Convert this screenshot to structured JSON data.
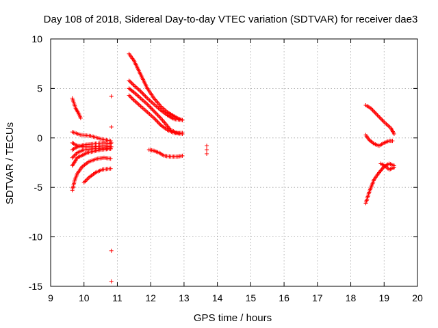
{
  "colors": {
    "series": "#ff0000",
    "grid": "#a0a0a0",
    "axis": "#000000",
    "background": "#ffffff"
  },
  "chart_data": {
    "type": "scatter",
    "title": "Day 108 of 2018, Sidereal Day-to-day VTEC variation (SDTVAR) for receiver dae3",
    "xlabel": "GPS time / hours",
    "ylabel": "SDTVAR / TECUs",
    "xlim": [
      9,
      20
    ],
    "ylim": [
      -15,
      10
    ],
    "xticks": [
      9,
      10,
      11,
      12,
      13,
      14,
      15,
      16,
      17,
      18,
      19,
      20
    ],
    "yticks": [
      -15,
      -10,
      -5,
      0,
      5,
      10
    ],
    "grid": true,
    "marker": "+",
    "series_tracks": [
      {
        "name": "track-a1",
        "points": [
          [
            9.65,
            4.0
          ],
          [
            9.75,
            3.0
          ],
          [
            9.85,
            2.4
          ],
          [
            9.9,
            2.0
          ]
        ]
      },
      {
        "name": "track-a2",
        "points": [
          [
            9.65,
            0.6
          ],
          [
            9.9,
            0.3
          ],
          [
            10.2,
            0.2
          ],
          [
            10.5,
            -0.1
          ],
          [
            10.8,
            -0.3
          ]
        ]
      },
      {
        "name": "track-a3",
        "points": [
          [
            9.65,
            -0.5
          ],
          [
            9.8,
            -0.8
          ],
          [
            10.0,
            -0.9
          ],
          [
            10.3,
            -0.9
          ],
          [
            10.6,
            -0.8
          ],
          [
            10.8,
            -0.9
          ]
        ]
      },
      {
        "name": "track-a4",
        "points": [
          [
            9.65,
            -1.2
          ],
          [
            9.8,
            -0.9
          ],
          [
            10.0,
            -0.7
          ],
          [
            10.3,
            -0.6
          ],
          [
            10.6,
            -0.5
          ],
          [
            10.8,
            -0.6
          ]
        ]
      },
      {
        "name": "track-a5",
        "points": [
          [
            9.65,
            -2.0
          ],
          [
            9.8,
            -1.5
          ],
          [
            10.0,
            -1.2
          ],
          [
            10.3,
            -1.1
          ],
          [
            10.6,
            -1.0
          ],
          [
            10.8,
            -1.1
          ]
        ]
      },
      {
        "name": "track-a6",
        "points": [
          [
            9.65,
            -2.8
          ],
          [
            9.8,
            -2.0
          ],
          [
            10.1,
            -1.5
          ],
          [
            10.5,
            -1.2
          ],
          [
            10.8,
            -1.1
          ]
        ]
      },
      {
        "name": "track-a7",
        "points": [
          [
            9.65,
            -5.3
          ],
          [
            9.72,
            -4.3
          ],
          [
            9.8,
            -3.6
          ],
          [
            9.95,
            -2.9
          ],
          [
            10.15,
            -2.4
          ],
          [
            10.4,
            -2.1
          ],
          [
            10.6,
            -2.0
          ],
          [
            10.8,
            -2.1
          ]
        ]
      },
      {
        "name": "track-a8",
        "points": [
          [
            10.0,
            -4.5
          ],
          [
            10.15,
            -4.0
          ],
          [
            10.35,
            -3.5
          ],
          [
            10.55,
            -3.2
          ],
          [
            10.8,
            -3.1
          ]
        ]
      },
      {
        "name": "track-b1",
        "points": [
          [
            11.35,
            8.5
          ],
          [
            11.5,
            7.8
          ],
          [
            11.7,
            6.4
          ],
          [
            11.9,
            5.0
          ],
          [
            12.1,
            4.0
          ],
          [
            12.3,
            3.2
          ],
          [
            12.5,
            2.6
          ],
          [
            12.7,
            2.2
          ],
          [
            12.8,
            2.0
          ],
          [
            12.95,
            1.8
          ]
        ]
      },
      {
        "name": "track-b2",
        "points": [
          [
            11.35,
            5.8
          ],
          [
            11.5,
            5.3
          ],
          [
            11.7,
            4.7
          ],
          [
            11.9,
            4.0
          ],
          [
            12.1,
            3.4
          ],
          [
            12.3,
            2.8
          ],
          [
            12.5,
            2.3
          ],
          [
            12.7,
            1.9
          ],
          [
            12.95,
            1.8
          ]
        ]
      },
      {
        "name": "track-b3",
        "points": [
          [
            11.35,
            5.0
          ],
          [
            11.5,
            4.6
          ],
          [
            11.7,
            4.0
          ],
          [
            11.9,
            3.4
          ],
          [
            12.1,
            2.7
          ],
          [
            12.3,
            2.0
          ],
          [
            12.5,
            1.2
          ],
          [
            12.6,
            0.8
          ],
          [
            12.8,
            0.5
          ],
          [
            12.95,
            0.5
          ]
        ]
      },
      {
        "name": "track-b4",
        "points": [
          [
            11.35,
            4.3
          ],
          [
            11.5,
            3.8
          ],
          [
            11.7,
            3.2
          ],
          [
            11.9,
            2.6
          ],
          [
            12.1,
            2.0
          ],
          [
            12.3,
            1.3
          ],
          [
            12.5,
            0.8
          ],
          [
            12.7,
            0.5
          ],
          [
            12.95,
            0.4
          ]
        ]
      },
      {
        "name": "track-b5",
        "points": [
          [
            11.95,
            -1.2
          ],
          [
            12.1,
            -1.3
          ],
          [
            12.25,
            -1.5
          ],
          [
            12.4,
            -1.8
          ],
          [
            12.6,
            -1.9
          ],
          [
            12.8,
            -1.9
          ],
          [
            12.95,
            -1.8
          ]
        ]
      },
      {
        "name": "track-c1",
        "points": [
          [
            18.45,
            3.3
          ],
          [
            18.6,
            3.0
          ],
          [
            18.8,
            2.3
          ],
          [
            19.0,
            1.6
          ],
          [
            19.2,
            1.0
          ],
          [
            19.3,
            0.4
          ]
        ]
      },
      {
        "name": "track-c2",
        "points": [
          [
            18.45,
            0.3
          ],
          [
            18.55,
            -0.2
          ],
          [
            18.7,
            -0.6
          ],
          [
            18.85,
            -0.8
          ],
          [
            19.0,
            -0.5
          ],
          [
            19.15,
            -0.3
          ],
          [
            19.25,
            -0.3
          ]
        ]
      },
      {
        "name": "track-c3",
        "points": [
          [
            18.45,
            -6.6
          ],
          [
            18.55,
            -5.5
          ],
          [
            18.7,
            -4.2
          ],
          [
            18.85,
            -3.5
          ],
          [
            19.0,
            -2.9
          ],
          [
            19.15,
            -2.6
          ],
          [
            19.3,
            -2.8
          ]
        ]
      },
      {
        "name": "track-c4",
        "points": [
          [
            18.9,
            -2.6
          ],
          [
            19.05,
            -2.9
          ],
          [
            19.15,
            -3.2
          ],
          [
            19.3,
            -3.0
          ]
        ]
      }
    ],
    "isolated_points": [
      {
        "x": 10.82,
        "y": 4.2
      },
      {
        "x": 10.82,
        "y": 1.1
      },
      {
        "x": 10.82,
        "y": -0.5
      },
      {
        "x": 10.82,
        "y": -0.9
      },
      {
        "x": 10.82,
        "y": -11.4
      },
      {
        "x": 10.82,
        "y": -14.5
      },
      {
        "x": 13.68,
        "y": -0.8
      },
      {
        "x": 13.68,
        "y": -1.2
      },
      {
        "x": 13.68,
        "y": -1.6
      }
    ]
  }
}
